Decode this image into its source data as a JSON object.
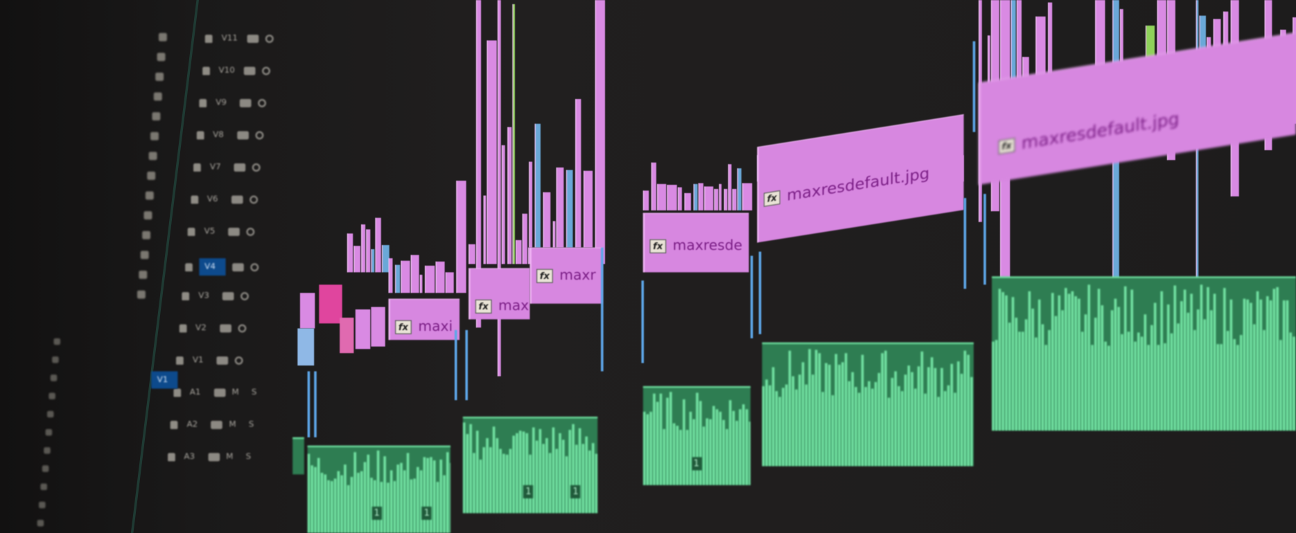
{
  "colors": {
    "video_clip": "#d787e0",
    "video_clip_hot": "#e0459e",
    "audio_clip": "#2e7d52",
    "audio_wave": "#73e3a3",
    "selected_track": "#0d4a8c",
    "edit_edge": "#5ea6e8",
    "background": "#1d1c1c"
  },
  "tracks": {
    "video": [
      "V11",
      "V10",
      "V9",
      "V8",
      "V7",
      "V6",
      "V5",
      "V4",
      "V3",
      "V2",
      "V1"
    ],
    "audio": [
      "A1",
      "A2",
      "A3"
    ],
    "selected": "V4",
    "source_patch": "V1",
    "mute_solo": "M S"
  },
  "video_clips": [
    {
      "name": "maxi",
      "effect": "fx"
    },
    {
      "name": "maxi",
      "effect": "fx"
    },
    {
      "name": "maxr",
      "effect": "fx"
    },
    {
      "name": "maxresde",
      "effect": "fx"
    },
    {
      "name": "maxresdefault.jpg",
      "effect": "fx"
    },
    {
      "name": "maxresdefault.jpg",
      "effect": "fx"
    }
  ],
  "audio_badge": "1",
  "icons": [
    "lock-icon",
    "eye-icon",
    "toggle-output-icon",
    "tool-icon"
  ]
}
